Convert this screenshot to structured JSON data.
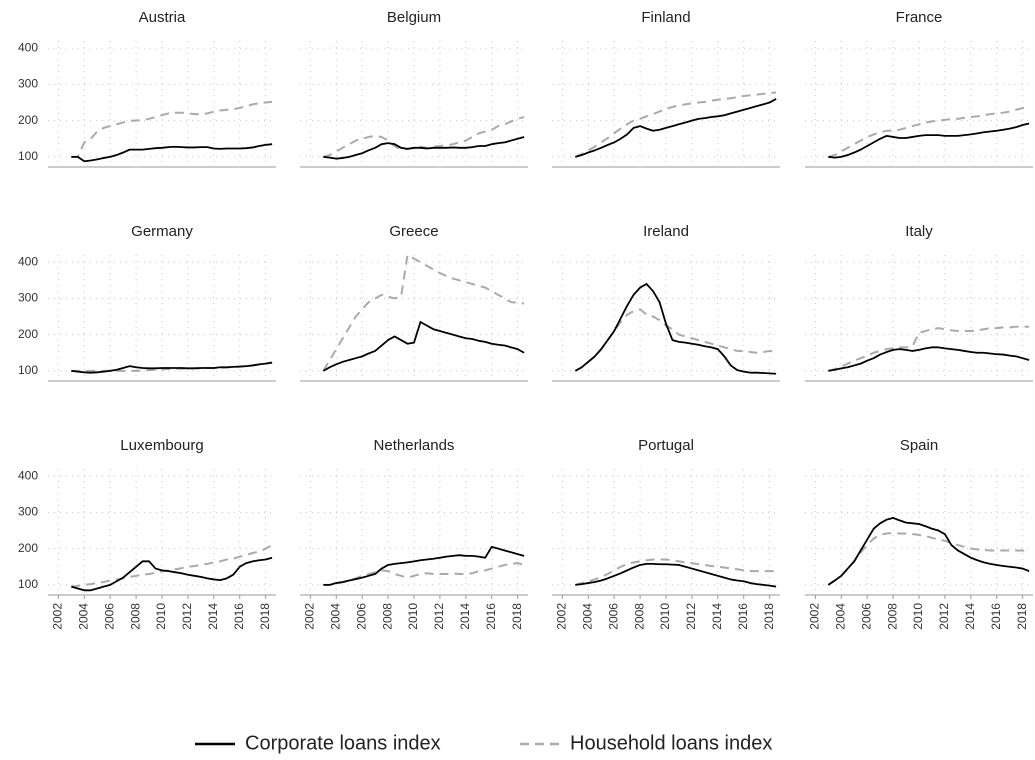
{
  "chart_data": {
    "type": "line",
    "x": [
      2003,
      2003.5,
      2004,
      2004.5,
      2005,
      2005.5,
      2006,
      2006.5,
      2007,
      2007.5,
      2008,
      2008.5,
      2009,
      2009.5,
      2010,
      2010.5,
      2011,
      2011.5,
      2012,
      2012.5,
      2013,
      2013.5,
      2014,
      2014.5,
      2015,
      2015.5,
      2016,
      2016.5,
      2017,
      2017.5,
      2018,
      2018.5
    ],
    "xlim": [
      2001.2,
      2018.8
    ],
    "xticks": [
      2002,
      2004,
      2006,
      2008,
      2010,
      2012,
      2014,
      2016,
      2018
    ],
    "ylim": [
      72,
      420
    ],
    "yticks": [
      100,
      200,
      300,
      400
    ],
    "grid": true,
    "series": [
      {
        "name": "Corporate loans index",
        "color": "#000000",
        "dash": "solid"
      },
      {
        "name": "Household loans index",
        "color": "#aaaaaa",
        "dash": "dashed"
      }
    ],
    "panels": [
      {
        "title": "Austria",
        "series": [
          {
            "values": [
              100,
              100,
              88,
              90,
              93,
              97,
              100,
              105,
              112,
              120,
              120,
              120,
              122,
              124,
              125,
              127,
              128,
              127,
              126,
              126,
              127,
              127,
              123,
              122,
              123,
              123,
              123,
              124,
              126,
              130,
              133,
              135
            ]
          },
          {
            "values": [
              100,
              100,
              140,
              150,
              170,
              180,
              185,
              190,
              195,
              200,
              200,
              202,
              205,
              210,
              215,
              220,
              222,
              222,
              220,
              218,
              218,
              220,
              225,
              228,
              230,
              232,
              235,
              240,
              245,
              248,
              250,
              252
            ]
          }
        ]
      },
      {
        "title": "Belgium",
        "series": [
          {
            "values": [
              100,
              98,
              95,
              97,
              100,
              105,
              110,
              118,
              125,
              135,
              138,
              135,
              125,
              122,
              125,
              125,
              123,
              125,
              125,
              125,
              126,
              125,
              125,
              127,
              130,
              130,
              135,
              138,
              140,
              145,
              150,
              155
            ]
          },
          {
            "values": [
              100,
              105,
              115,
              125,
              135,
              145,
              150,
              155,
              158,
              155,
              145,
              130,
              120,
              122,
              125,
              128,
              125,
              128,
              130,
              132,
              135,
              140,
              145,
              155,
              165,
              170,
              175,
              185,
              190,
              198,
              205,
              210
            ]
          }
        ]
      },
      {
        "title": "Finland",
        "series": [
          {
            "values": [
              100,
              105,
              112,
              118,
              125,
              133,
              140,
              150,
              162,
              180,
              185,
              178,
              172,
              175,
              180,
              185,
              190,
              195,
              200,
              205,
              207,
              210,
              212,
              215,
              220,
              225,
              230,
              235,
              240,
              245,
              250,
              260
            ]
          },
          {
            "values": [
              100,
              108,
              118,
              128,
              140,
              152,
              165,
              178,
              190,
              200,
              205,
              212,
              218,
              225,
              232,
              238,
              242,
              245,
              248,
              250,
              252,
              255,
              258,
              260,
              262,
              265,
              268,
              270,
              272,
              274,
              276,
              278
            ]
          }
        ]
      },
      {
        "title": "France",
        "series": [
          {
            "values": [
              100,
              98,
              100,
              105,
              112,
              120,
              130,
              140,
              150,
              158,
              155,
              152,
              152,
              155,
              158,
              160,
              160,
              160,
              158,
              158,
              158,
              160,
              162,
              165,
              168,
              170,
              172,
              175,
              178,
              182,
              188,
              192
            ]
          },
          {
            "values": [
              100,
              105,
              115,
              125,
              135,
              145,
              155,
              162,
              168,
              172,
              172,
              175,
              180,
              185,
              190,
              195,
              198,
              200,
              202,
              205,
              205,
              208,
              210,
              212,
              215,
              218,
              220,
              222,
              225,
              230,
              235,
              238
            ]
          }
        ]
      },
      {
        "title": "Germany",
        "series": [
          {
            "values": [
              100,
              98,
              96,
              95,
              96,
              98,
              100,
              103,
              108,
              113,
              110,
              108,
              107,
              107,
              108,
              108,
              108,
              108,
              107,
              107,
              108,
              108,
              108,
              110,
              110,
              111,
              112,
              113,
              115,
              118,
              120,
              123
            ]
          },
          {
            "values": [
              100,
              100,
              100,
              100,
              100,
              100,
              100,
              100,
              100,
              100,
              100,
              101,
              102,
              103,
              104,
              105,
              106,
              106,
              107,
              107,
              107,
              108,
              108,
              108,
              109,
              110,
              111,
              113,
              115,
              118,
              120,
              122
            ]
          }
        ]
      },
      {
        "title": "Greece",
        "series": [
          {
            "values": [
              100,
              110,
              118,
              125,
              130,
              135,
              140,
              148,
              155,
              170,
              185,
              195,
              185,
              175,
              178,
              235,
              225,
              215,
              210,
              205,
              200,
              195,
              190,
              188,
              183,
              180,
              175,
              172,
              170,
              165,
              160,
              150
            ]
          },
          {
            "values": [
              100,
              130,
              160,
              190,
              220,
              250,
              270,
              290,
              300,
              310,
              305,
              300,
              305,
              420,
              410,
              400,
              390,
              380,
              370,
              362,
              355,
              350,
              345,
              340,
              335,
              330,
              320,
              310,
              300,
              290,
              288,
              286
            ]
          }
        ]
      },
      {
        "title": "Ireland",
        "series": [
          {
            "values": [
              100,
              110,
              125,
              140,
              160,
              185,
              210,
              245,
              280,
              310,
              330,
              340,
              320,
              290,
              230,
              185,
              180,
              178,
              175,
              172,
              168,
              165,
              160,
              140,
              115,
              102,
              98,
              95,
              95,
              94,
              93,
              92
            ]
          },
          {
            "values": [
              100,
              110,
              125,
              140,
              160,
              185,
              210,
              235,
              255,
              265,
              270,
              255,
              250,
              240,
              225,
              215,
              200,
              195,
              190,
              185,
              180,
              175,
              170,
              165,
              160,
              155,
              155,
              152,
              150,
              152,
              155,
              152
            ]
          }
        ]
      },
      {
        "title": "Italy",
        "series": [
          {
            "values": [
              100,
              103,
              107,
              110,
              115,
              120,
              128,
              135,
              145,
              152,
              158,
              160,
              158,
              155,
              158,
              162,
              165,
              165,
              162,
              160,
              158,
              155,
              152,
              150,
              150,
              148,
              146,
              145,
              142,
              140,
              135,
              130
            ]
          },
          {
            "values": [
              100,
              105,
              112,
              120,
              128,
              135,
              142,
              150,
              155,
              160,
              163,
              165,
              165,
              168,
              205,
              210,
              215,
              218,
              215,
              212,
              210,
              210,
              210,
              212,
              215,
              218,
              218,
              220,
              220,
              222,
              222,
              222
            ]
          }
        ]
      },
      {
        "title": "Luxembourg",
        "series": [
          {
            "values": [
              95,
              90,
              85,
              85,
              90,
              95,
              100,
              110,
              120,
              135,
              150,
              165,
              165,
              145,
              140,
              138,
              135,
              132,
              128,
              125,
              122,
              118,
              115,
              113,
              118,
              128,
              150,
              160,
              165,
              168,
              170,
              175
            ]
          },
          {
            "values": [
              95,
              97,
              100,
              102,
              105,
              108,
              112,
              115,
              118,
              122,
              125,
              128,
              130,
              133,
              137,
              140,
              143,
              146,
              150,
              152,
              155,
              158,
              162,
              165,
              170,
              172,
              178,
              182,
              188,
              192,
              200,
              210
            ]
          }
        ]
      },
      {
        "title": "Netherlands",
        "series": [
          {
            "values": [
              100,
              100,
              105,
              108,
              112,
              116,
              120,
              125,
              130,
              145,
              155,
              158,
              160,
              162,
              165,
              168,
              170,
              172,
              175,
              178,
              180,
              182,
              180,
              180,
              178,
              175,
              205,
              200,
              195,
              190,
              185,
              180
            ]
          },
          {
            "values": [
              100,
              100,
              103,
              107,
              112,
              118,
              125,
              130,
              135,
              140,
              138,
              130,
              125,
              120,
              125,
              130,
              132,
              130,
              130,
              130,
              132,
              130,
              130,
              132,
              138,
              140,
              145,
              150,
              155,
              158,
              160,
              155
            ]
          }
        ]
      },
      {
        "title": "Portugal",
        "series": [
          {
            "values": [
              100,
              102,
              105,
              108,
              112,
              118,
              125,
              132,
              140,
              148,
              155,
              158,
              158,
              157,
              157,
              156,
              155,
              150,
              145,
              140,
              135,
              130,
              125,
              120,
              115,
              112,
              110,
              105,
              102,
              100,
              98,
              95
            ]
          },
          {
            "values": [
              100,
              105,
              110,
              115,
              122,
              130,
              140,
              150,
              158,
              162,
              165,
              168,
              170,
              170,
              170,
              168,
              165,
              162,
              160,
              157,
              155,
              152,
              150,
              148,
              145,
              143,
              140,
              138,
              138,
              138,
              138,
              138
            ]
          }
        ]
      },
      {
        "title": "Spain",
        "series": [
          {
            "values": [
              100,
              112,
              125,
              145,
              165,
              195,
              225,
              255,
              270,
              280,
              285,
              278,
              272,
              270,
              268,
              262,
              255,
              250,
              240,
              210,
              195,
              185,
              175,
              168,
              162,
              158,
              155,
              152,
              150,
              148,
              145,
              138
            ]
          },
          {
            "values": [
              100,
              112,
              125,
              145,
              165,
              190,
              210,
              228,
              238,
              242,
              243,
              242,
              242,
              240,
              238,
              235,
              230,
              225,
              222,
              215,
              210,
              205,
              200,
              198,
              196,
              195,
              195,
              195,
              195,
              195,
              195,
              193
            ]
          }
        ]
      }
    ]
  }
}
